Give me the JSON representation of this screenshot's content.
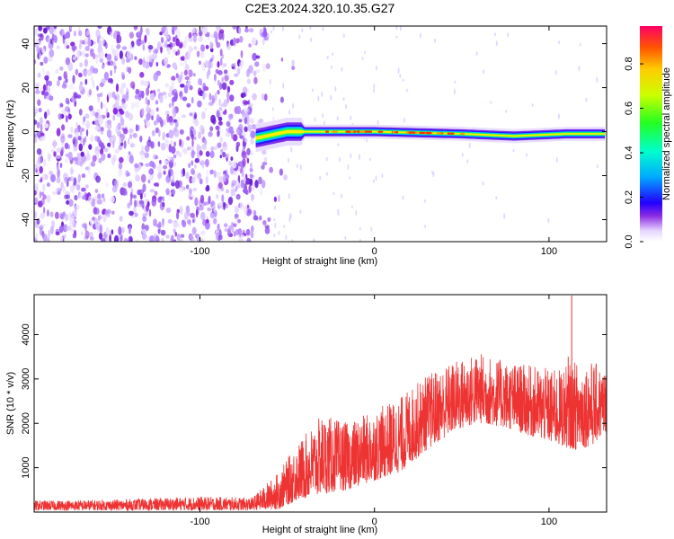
{
  "title": "C2E3.2024.320.10.35.G27",
  "chart_data": [
    {
      "type": "heatmap",
      "xlabel": "Height of straight line (km)",
      "ylabel": "Frequency (Hz)",
      "xlim": [
        -195,
        133
      ],
      "ylim": [
        -50,
        48
      ],
      "xticks": [
        -100,
        0,
        100
      ],
      "yticks": [
        -40,
        -20,
        0,
        20,
        40
      ],
      "colorbar": {
        "label": "Normalized spectral amplitude",
        "range": [
          0,
          0.97
        ],
        "ticks": [
          0.0,
          0.2,
          0.4,
          0.6,
          0.8
        ]
      },
      "features": {
        "noise_region_x": [
          -195,
          -60
        ],
        "signal_line_start_x": -68,
        "signal_line_freq_hz": [
          {
            "x": -68,
            "y": -3
          },
          {
            "x": -50,
            "y": 0
          },
          {
            "x": 0,
            "y": 0
          },
          {
            "x": 50,
            "y": -1
          },
          {
            "x": 80,
            "y": -2
          },
          {
            "x": 110,
            "y": -1
          },
          {
            "x": 133,
            "y": -1
          }
        ]
      }
    },
    {
      "type": "line",
      "xlabel": "Height of straight line (km)",
      "ylabel": "SNR (10 * v/v)",
      "xlim": [
        -195,
        133
      ],
      "ylim": [
        0,
        4900
      ],
      "xticks": [
        -100,
        0,
        100
      ],
      "yticks": [
        1000,
        2000,
        3000,
        4000
      ],
      "color": "#ee3333",
      "envelope": [
        {
          "x": -195,
          "low": 40,
          "high": 260
        },
        {
          "x": -150,
          "low": 40,
          "high": 280
        },
        {
          "x": -100,
          "low": 40,
          "high": 350
        },
        {
          "x": -70,
          "low": 40,
          "high": 330
        },
        {
          "x": -55,
          "low": 60,
          "high": 900
        },
        {
          "x": -45,
          "low": 250,
          "high": 1500
        },
        {
          "x": -30,
          "low": 400,
          "high": 2200
        },
        {
          "x": -15,
          "low": 500,
          "high": 2000
        },
        {
          "x": 0,
          "low": 700,
          "high": 2300
        },
        {
          "x": 15,
          "low": 900,
          "high": 2600
        },
        {
          "x": 30,
          "low": 1400,
          "high": 3100
        },
        {
          "x": 45,
          "low": 1800,
          "high": 3400
        },
        {
          "x": 60,
          "low": 2000,
          "high": 3600
        },
        {
          "x": 75,
          "low": 1900,
          "high": 3400
        },
        {
          "x": 90,
          "low": 1700,
          "high": 3300
        },
        {
          "x": 105,
          "low": 1500,
          "high": 3200
        },
        {
          "x": 115,
          "low": 1400,
          "high": 3400
        },
        {
          "x": 125,
          "low": 1500,
          "high": 3400
        },
        {
          "x": 133,
          "low": 1800,
          "high": 3200
        }
      ],
      "peaks": [
        {
          "x": 113,
          "y": 4880
        },
        {
          "x": 111,
          "y": 3500
        }
      ]
    }
  ]
}
